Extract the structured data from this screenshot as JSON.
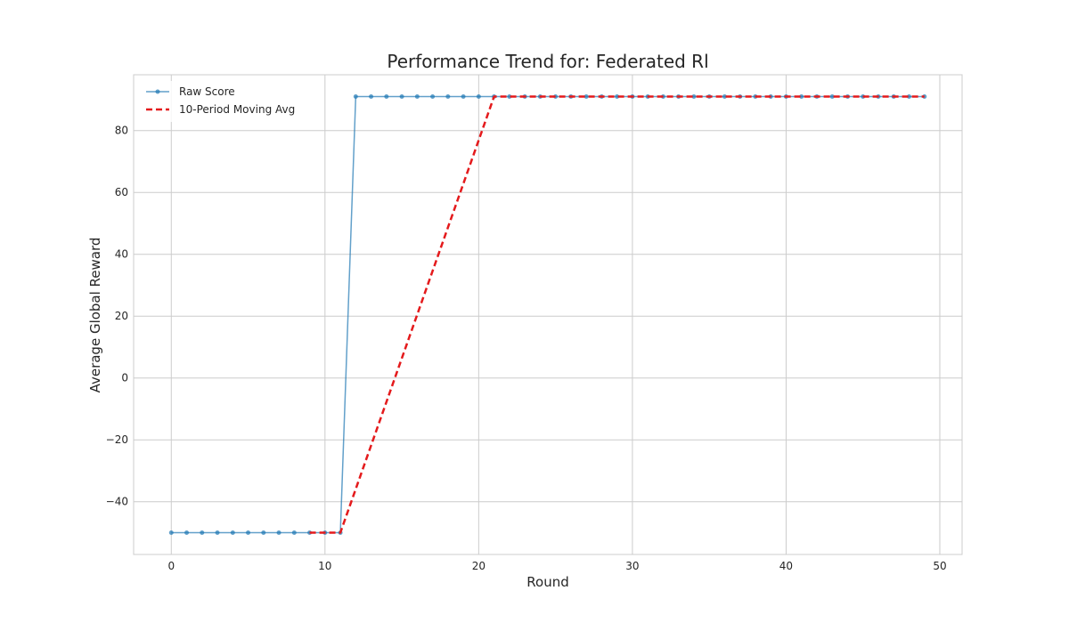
{
  "chart_data": {
    "type": "line",
    "title": "Performance Trend for: Federated Rl",
    "xlabel": "Round",
    "ylabel": "Average Global Reward",
    "xlim": [
      -2.45,
      51.45
    ],
    "ylim": [
      -57.05,
      98.05
    ],
    "xticks": [
      0,
      10,
      20,
      30,
      40,
      50
    ],
    "yticks": [
      -40,
      -20,
      0,
      20,
      40,
      60,
      80
    ],
    "grid": true,
    "legend": "top-left",
    "series": [
      {
        "name": "Raw Score",
        "color": "#1f77b4",
        "style": "solid-with-markers",
        "x": [
          0,
          1,
          2,
          3,
          4,
          5,
          6,
          7,
          8,
          9,
          10,
          11,
          12,
          13,
          14,
          15,
          16,
          17,
          18,
          19,
          20,
          21,
          22,
          23,
          24,
          25,
          26,
          27,
          28,
          29,
          30,
          31,
          32,
          33,
          34,
          35,
          36,
          37,
          38,
          39,
          40,
          41,
          42,
          43,
          44,
          45,
          46,
          47,
          48,
          49
        ],
        "y": [
          -50,
          -50,
          -50,
          -50,
          -50,
          -50,
          -50,
          -50,
          -50,
          -50,
          -50,
          -50,
          91,
          91,
          91,
          91,
          91,
          91,
          91,
          91,
          91,
          91,
          91,
          91,
          91,
          91,
          91,
          91,
          91,
          91,
          91,
          91,
          91,
          91,
          91,
          91,
          91,
          91,
          91,
          91,
          91,
          91,
          91,
          91,
          91,
          91,
          91,
          91,
          91,
          91
        ]
      },
      {
        "name": "10-Period Moving Avg",
        "color": "#e41a1c",
        "style": "dashed",
        "x": [
          9,
          10,
          11,
          12,
          13,
          14,
          15,
          16,
          17,
          18,
          19,
          20,
          21,
          22,
          23,
          24,
          25,
          26,
          27,
          28,
          29,
          30,
          31,
          32,
          33,
          34,
          35,
          36,
          37,
          38,
          39,
          40,
          41,
          42,
          43,
          44,
          45,
          46,
          47,
          48,
          49
        ],
        "y": [
          -50,
          -50,
          -50,
          -35.9,
          -21.8,
          -7.7,
          6.4,
          20.5,
          34.6,
          48.7,
          62.8,
          76.9,
          91,
          91,
          91,
          91,
          91,
          91,
          91,
          91,
          91,
          91,
          91,
          91,
          91,
          91,
          91,
          91,
          91,
          91,
          91,
          91,
          91,
          91,
          91,
          91,
          91,
          91,
          91,
          91,
          91
        ]
      }
    ]
  }
}
